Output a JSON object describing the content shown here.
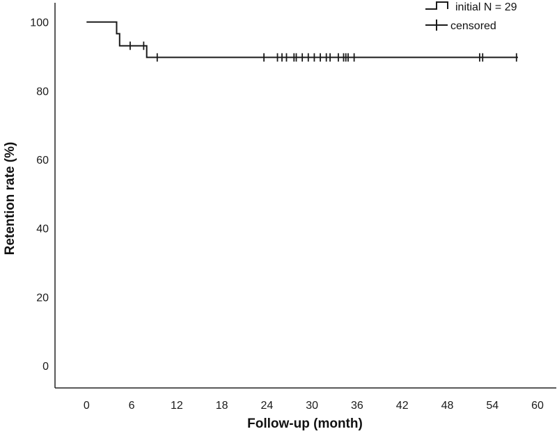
{
  "chart_data": {
    "type": "line",
    "subtype": "kaplan-meier step curve",
    "xlabel": "Follow-up (month)",
    "ylabel": "Retention rate (%)",
    "xlim": [
      -4.2,
      62.5
    ],
    "ylim": [
      -6.5,
      105.6
    ],
    "x_ticks": [
      0,
      6,
      12,
      18,
      24,
      30,
      36,
      42,
      48,
      54,
      60
    ],
    "y_ticks": [
      0,
      20,
      40,
      60,
      80,
      100
    ],
    "grid": false,
    "legend": {
      "position": "top-right",
      "entries": [
        {
          "label": "initial N = 29",
          "marker": "step"
        },
        {
          "label": "censored",
          "marker": "plus"
        }
      ]
    },
    "colors": {
      "line": "#1a1a1a",
      "axis": "#222222"
    },
    "series": [
      {
        "label": "initial N = 29",
        "steps": [
          [
            0,
            100
          ],
          [
            4,
            96.6
          ],
          [
            4.4,
            93.1
          ],
          [
            8,
            89.7
          ],
          [
            57.4,
            89.7
          ]
        ],
        "censored": [
          [
            5.8,
            93.1
          ],
          [
            7.6,
            93.1
          ],
          [
            9.4,
            89.7
          ],
          [
            23.6,
            89.7
          ],
          [
            25.4,
            89.7
          ],
          [
            26,
            89.7
          ],
          [
            26.6,
            89.7
          ],
          [
            27.6,
            89.7
          ],
          [
            27.9,
            89.7
          ],
          [
            28.7,
            89.7
          ],
          [
            29.5,
            89.7
          ],
          [
            30.3,
            89.7
          ],
          [
            31.1,
            89.7
          ],
          [
            31.9,
            89.7
          ],
          [
            32.4,
            89.7
          ],
          [
            33.5,
            89.7
          ],
          [
            34.2,
            89.7
          ],
          [
            34.5,
            89.7
          ],
          [
            34.8,
            89.7
          ],
          [
            35.6,
            89.7
          ],
          [
            52.3,
            89.7
          ],
          [
            52.7,
            89.7
          ],
          [
            57.2,
            89.7
          ]
        ]
      }
    ]
  }
}
